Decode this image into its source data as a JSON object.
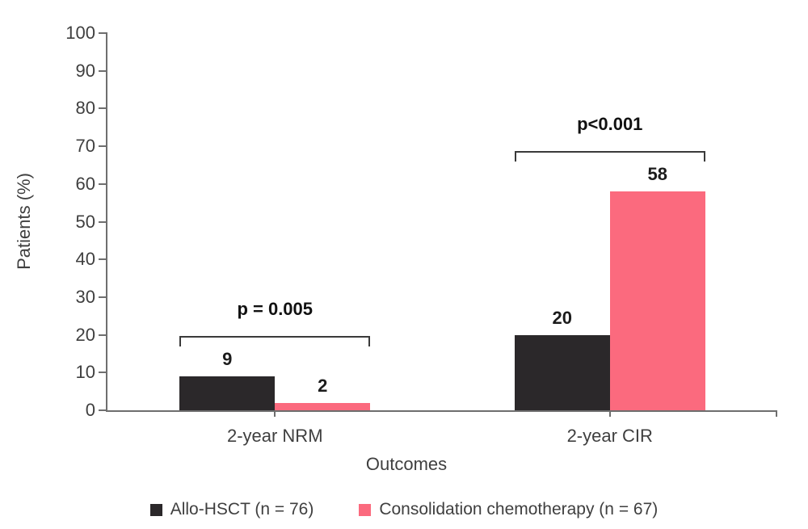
{
  "chart_data": {
    "type": "bar",
    "title": "",
    "xlabel": "Outcomes",
    "ylabel": "Patients (%)",
    "ylim": [
      0,
      100
    ],
    "yticks": [
      0,
      10,
      20,
      30,
      40,
      50,
      60,
      70,
      80,
      90,
      100
    ],
    "categories": [
      "2-year NRM",
      "2-year CIR"
    ],
    "series": [
      {
        "name": "Allo-HSCT (n = 76)",
        "color": "#2b282a",
        "values": [
          9,
          20
        ]
      },
      {
        "name": "Consolidation chemotherapy (n = 67)",
        "color": "#fb6a7e",
        "values": [
          2,
          58
        ]
      }
    ],
    "annotations": [
      {
        "category": "2-year NRM",
        "label": "p = 0.005"
      },
      {
        "category": "2-year CIR",
        "label": "p<0.001"
      }
    ],
    "bar_value_labels": [
      [
        9,
        2
      ],
      [
        20,
        58
      ]
    ],
    "legend_position": "bottom",
    "grid": false
  },
  "colors": {
    "background": "#ffffff",
    "axis": "#6e6e6e",
    "text": "#3f3f3f",
    "emphasis_text": "#1a1a1a",
    "bracket": "#3a3a3a"
  }
}
